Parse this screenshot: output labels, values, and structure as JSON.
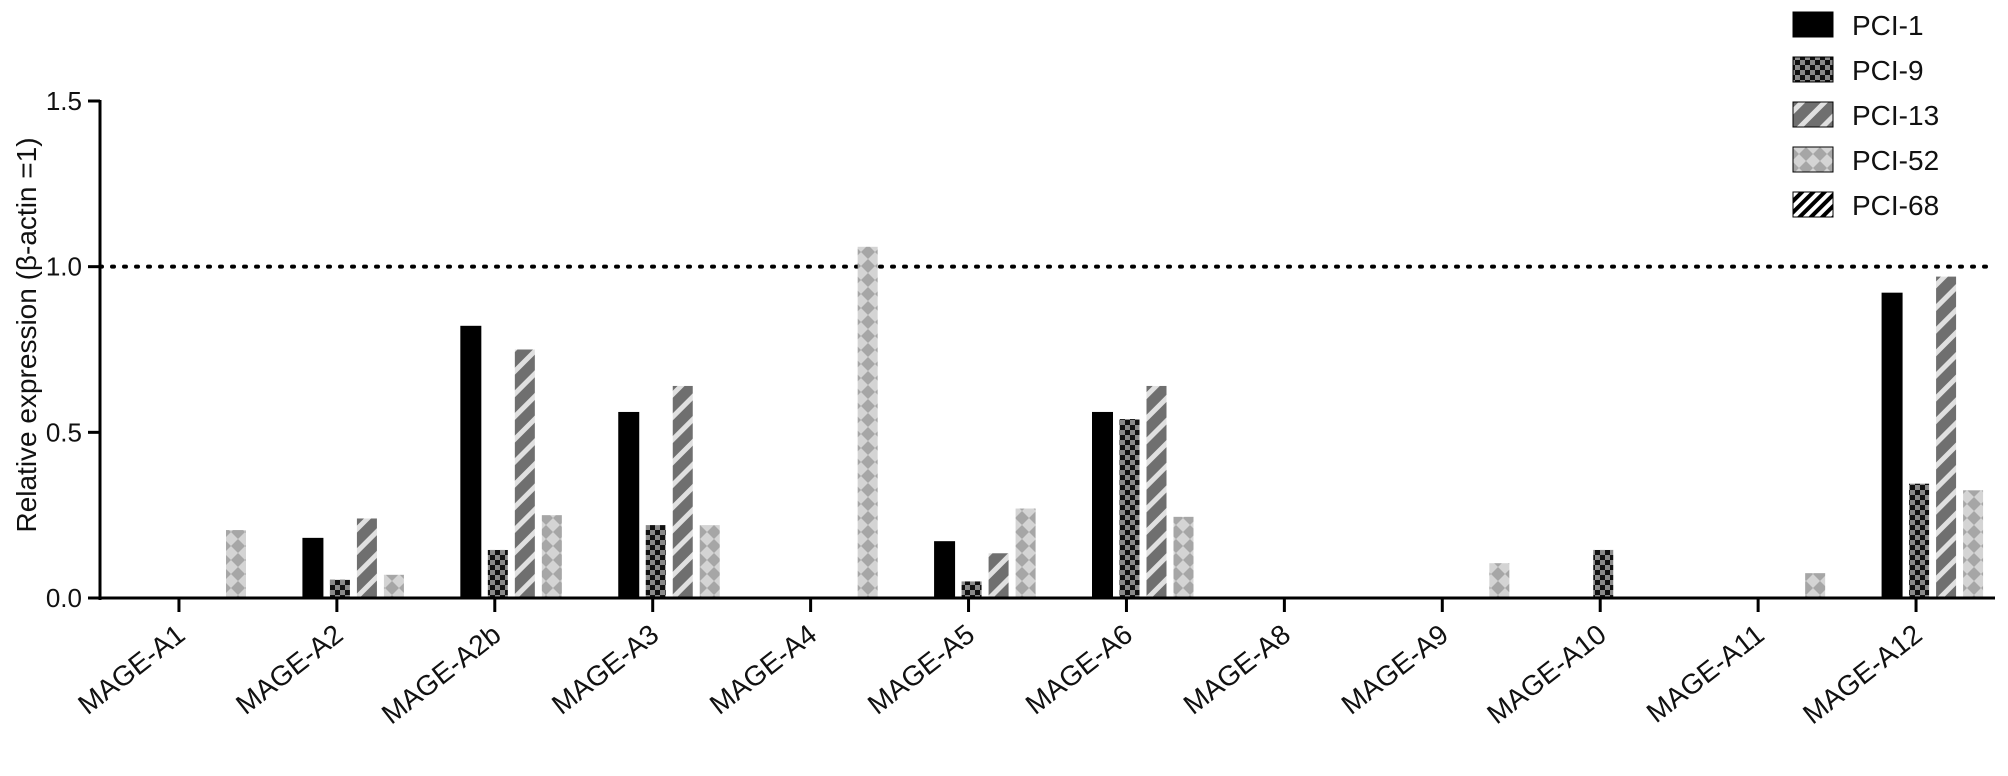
{
  "chart_data": {
    "type": "bar",
    "title": "",
    "xlabel": "",
    "ylabel": "Relative expression (β-actin =1)",
    "ylim": [
      0,
      1.5
    ],
    "yticks": [
      "0.0",
      "0.5",
      "1.0",
      "1.5"
    ],
    "reference_line": {
      "value": 1.0,
      "style": "dotted"
    },
    "grid": false,
    "legend_position": "top-right",
    "categories": [
      "MAGE-A1",
      "MAGE-A2",
      "MAGE-A2b",
      "MAGE-A3",
      "MAGE-A4",
      "MAGE-A5",
      "MAGE-A6",
      "MAGE-A8",
      "MAGE-A9",
      "MAGE-A10",
      "MAGE-A11",
      "MAGE-A12"
    ],
    "series": [
      {
        "name": "PCI-1",
        "pattern": "solid",
        "color": "#000000",
        "values": [
          0,
          0.18,
          0.82,
          0.56,
          0,
          0.17,
          0.56,
          0,
          0,
          0,
          0,
          0.92
        ]
      },
      {
        "name": "PCI-9",
        "pattern": "checker",
        "color": "#222222",
        "values": [
          0,
          0.055,
          0.145,
          0.22,
          0,
          0.05,
          0.54,
          0,
          0,
          0.145,
          0,
          0.345
        ]
      },
      {
        "name": "PCI-13",
        "pattern": "diagonal-stripe",
        "color": "#777777",
        "values": [
          0,
          0.24,
          0.75,
          0.64,
          0,
          0.135,
          0.64,
          0,
          0,
          0,
          0,
          0.97
        ]
      },
      {
        "name": "PCI-52",
        "pattern": "light-check",
        "color": "#a8a8a8",
        "values": [
          0.205,
          0.07,
          0.25,
          0.22,
          1.06,
          0.27,
          0.245,
          0,
          0.105,
          0,
          0.075,
          0.325
        ]
      },
      {
        "name": "PCI-68",
        "pattern": "hatch",
        "color": "#000000",
        "values": [
          0,
          0,
          0,
          0,
          0,
          0,
          0,
          0,
          0,
          0,
          0,
          0
        ]
      }
    ]
  }
}
